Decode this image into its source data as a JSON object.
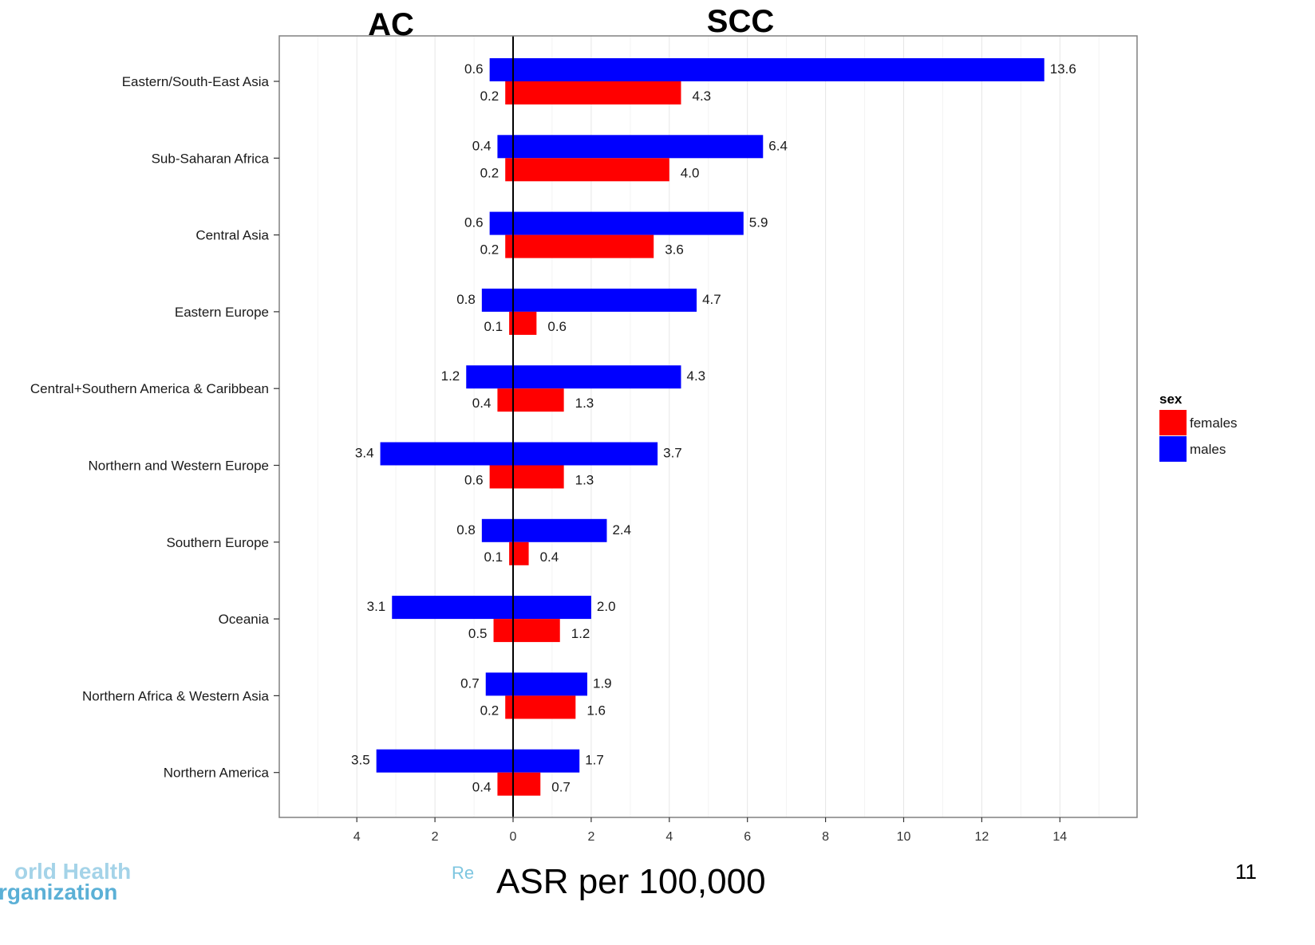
{
  "chart_data": {
    "type": "bar",
    "orientation": "horizontal",
    "panel_left_title": "AC",
    "panel_right_title": "SCC",
    "legend": {
      "title": "sex",
      "placement": "right",
      "entries": [
        {
          "name": "females",
          "color": "#ff0000"
        },
        {
          "name": "males",
          "color": "#0000ff"
        }
      ]
    },
    "x_tick_labels": [
      "4",
      "2",
      "0",
      "2",
      "4",
      "6",
      "8",
      "10",
      "12",
      "14"
    ],
    "x_tick_values": [
      -4,
      -2,
      0,
      2,
      4,
      6,
      8,
      10,
      12,
      14
    ],
    "xlim": [
      -6,
      16
    ],
    "grid": true,
    "categories": [
      "Eastern/South-East Asia",
      "Sub-Saharan Africa",
      "Central Asia",
      "Eastern Europe",
      "Central+Southern America & Caribbean",
      "Northern and Western Europe",
      "Southern Europe",
      "Oceania",
      "Northern Africa & Western Asia",
      "Northern America"
    ],
    "series": [
      {
        "name": "males",
        "color": "#0000ff",
        "ac": [
          0.6,
          0.4,
          0.6,
          0.8,
          1.2,
          3.4,
          0.8,
          3.1,
          0.7,
          3.5
        ],
        "scc": [
          13.6,
          6.4,
          5.9,
          4.7,
          4.3,
          3.7,
          2.4,
          2.0,
          1.9,
          1.7
        ],
        "ac_labels": [
          "0.6",
          "0.4",
          "0.6",
          "0.8",
          "1.2",
          "3.4",
          "0.8",
          "3.1",
          "0.7",
          "3.5"
        ],
        "scc_labels": [
          "13.6",
          "6.4",
          "5.9",
          "4.7",
          "4.3",
          "3.7",
          "2.4",
          "2.0",
          "1.9",
          "1.7"
        ]
      },
      {
        "name": "females",
        "color": "#ff0000",
        "ac": [
          0.2,
          0.2,
          0.2,
          0.1,
          0.4,
          0.6,
          0.1,
          0.5,
          0.2,
          0.4
        ],
        "scc": [
          4.3,
          4.0,
          3.6,
          0.6,
          1.3,
          1.3,
          0.4,
          1.2,
          1.6,
          0.7
        ],
        "ac_labels": [
          "0.2",
          "0.2",
          "0.2",
          "0.1",
          "0.4",
          "0.6",
          "0.1",
          "0.5",
          "0.2",
          "0.4"
        ],
        "scc_labels": [
          "4.3",
          "4.0",
          "3.6",
          "0.6",
          "1.3",
          "1.3",
          "0.4",
          "1.2",
          "1.6",
          "0.7"
        ]
      }
    ]
  },
  "footer": {
    "xlabel": "ASR per 100,000",
    "logo_fragment_top": "orld Health",
    "logo_fragment_bottom": "rganization",
    "faded_text": "Re",
    "slide_number": "11"
  }
}
